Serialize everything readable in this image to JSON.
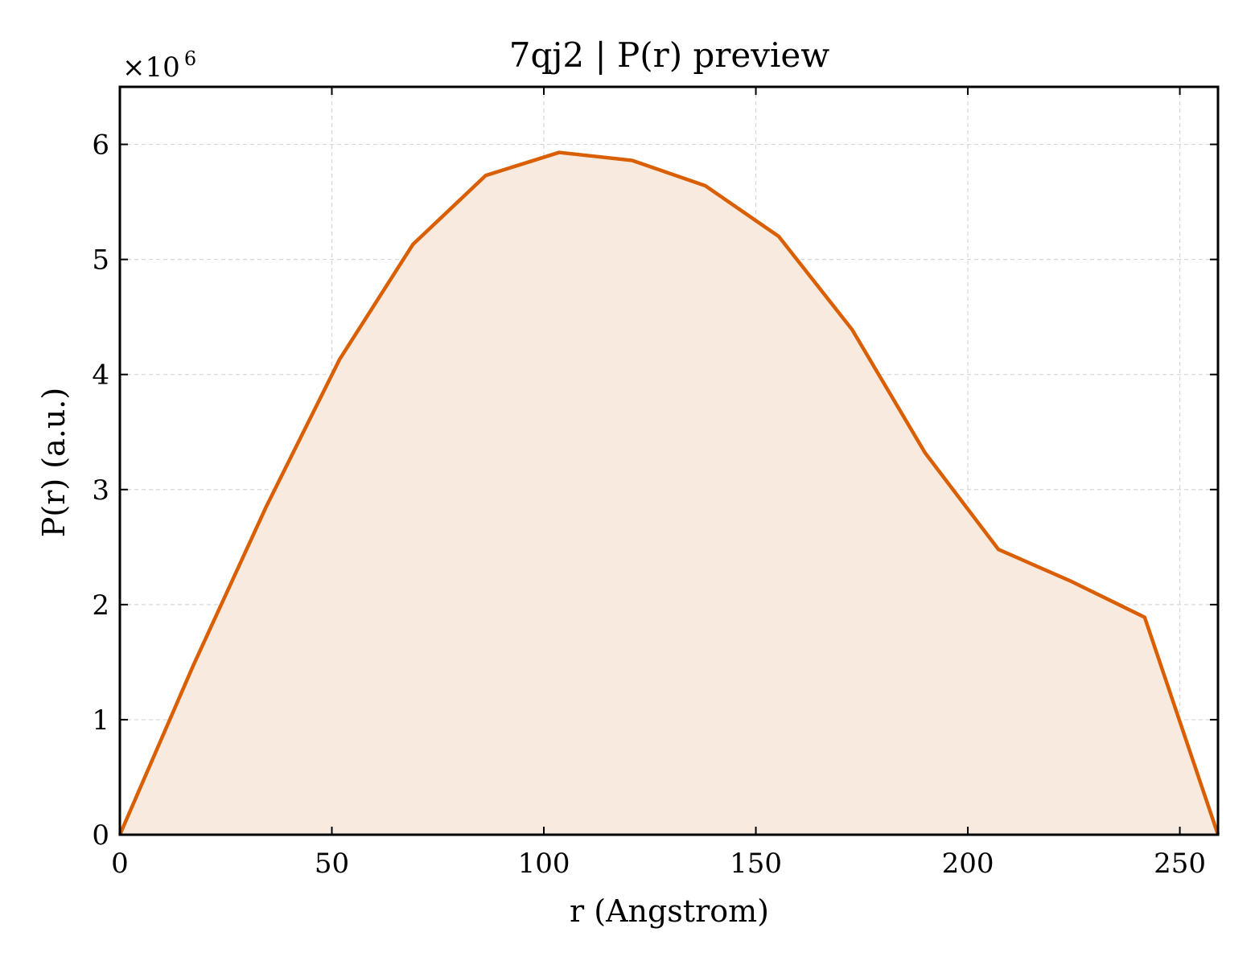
{
  "chart_data": {
    "type": "area",
    "title": "7qj2 | P(r) preview",
    "xlabel": "r (Angstrom)",
    "ylabel": "P(r) (a.u.)",
    "y_multiplier_base": "×10",
    "y_multiplier_exponent": "6",
    "xlim": [
      0,
      259
    ],
    "ylim": [
      0,
      6.5
    ],
    "xticks": [
      0,
      50,
      100,
      150,
      200,
      250
    ],
    "yticks": [
      0,
      1,
      2,
      3,
      4,
      5,
      6
    ],
    "xtick_labels": [
      "0",
      "50",
      "100",
      "150",
      "200",
      "250"
    ],
    "ytick_labels": [
      "0",
      "1",
      "2",
      "3",
      "4",
      "5",
      "6"
    ],
    "grid": true,
    "line_color": "#d95f02",
    "fill_color": "#f8eadf",
    "series": [
      {
        "x": [
          0,
          17.3,
          34.5,
          51.8,
          69.1,
          86.3,
          103.6,
          120.9,
          138.1,
          155.4,
          172.7,
          189.9,
          207.2,
          224.5,
          241.7,
          259.0
        ],
        "y": [
          0,
          1.47,
          2.85,
          4.13,
          5.13,
          5.73,
          5.93,
          5.86,
          5.64,
          5.2,
          4.39,
          3.32,
          2.48,
          2.2,
          1.89,
          0
        ]
      }
    ]
  }
}
